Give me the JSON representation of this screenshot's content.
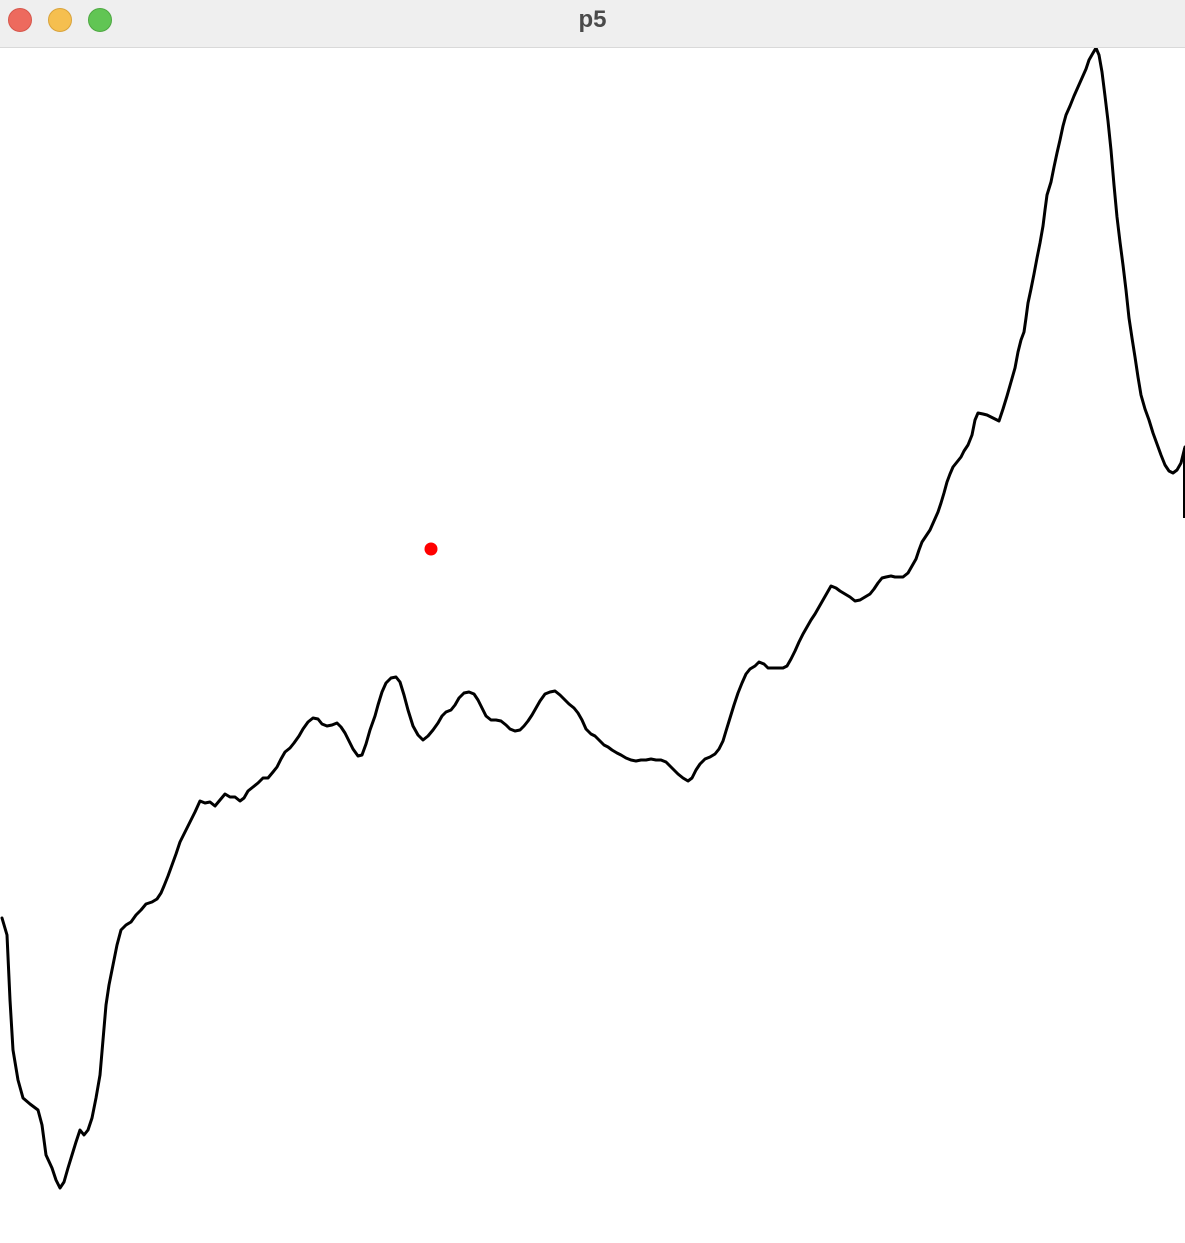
{
  "window": {
    "title": "p5",
    "controls": {
      "close_color": "#ed6a5e",
      "minimize_color": "#f5bf4f",
      "zoom_color": "#61c554"
    }
  },
  "canvas": {
    "background": "#ffffff",
    "line_color": "#000000",
    "dot_color": "#ff0000"
  }
}
